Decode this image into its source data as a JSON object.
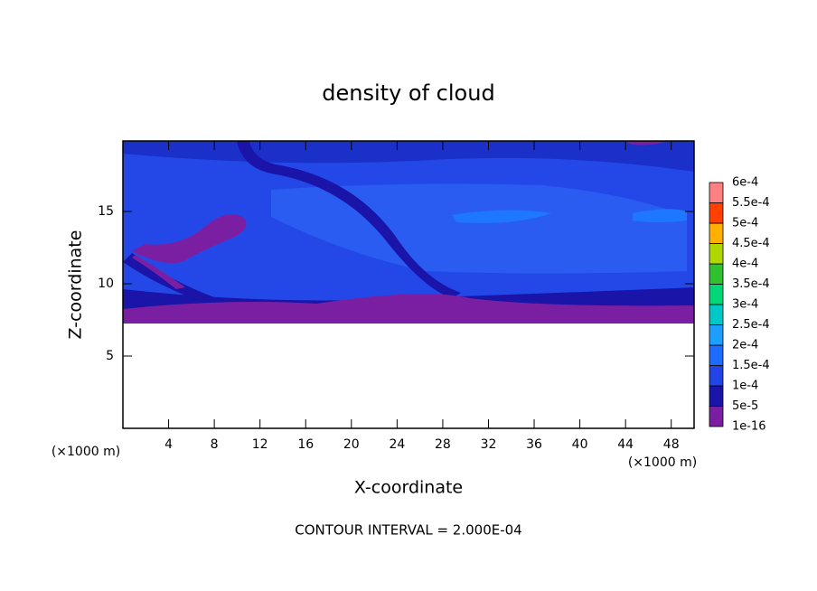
{
  "chart_data": {
    "type": "contour",
    "title": "density of cloud",
    "x_label": "X-coordinate",
    "y_label": "Z-coordinate",
    "x_unit": "(×1000 m)",
    "y_unit": "(×1000 m)",
    "annotation": "CONTOUR INTERVAL = 2.000E-04",
    "xlim": [
      0,
      50
    ],
    "ylim": [
      0,
      20
    ],
    "xticks": [
      4,
      8,
      12,
      16,
      20,
      24,
      28,
      32,
      36,
      40,
      44,
      48
    ],
    "yticks": [
      5,
      10,
      15
    ],
    "colorbar": {
      "levels": [
        {
          "value": 1e-16,
          "label": "1e-16"
        },
        {
          "value": 5e-05,
          "label": "5e-5"
        },
        {
          "value": 0.0001,
          "label": "1e-4"
        },
        {
          "value": 0.00015,
          "label": "1.5e-4"
        },
        {
          "value": 0.0002,
          "label": "2e-4"
        },
        {
          "value": 0.00025,
          "label": "2.5e-4"
        },
        {
          "value": 0.0003,
          "label": "3e-4"
        },
        {
          "value": 0.00035,
          "label": "3.5e-4"
        },
        {
          "value": 0.0004,
          "label": "4e-4"
        },
        {
          "value": 0.00045,
          "label": "4.5e-4"
        },
        {
          "value": 0.0005,
          "label": "5e-4"
        },
        {
          "value": 0.00055,
          "label": "5.5e-4"
        },
        {
          "value": 0.0006,
          "label": "6e-4"
        }
      ],
      "colors": [
        "#7b1fa2",
        "#1a14a8",
        "#2244e6",
        "#1e6cff",
        "#1e9eff",
        "#00c8c8",
        "#00d878",
        "#30c030",
        "#b0d800",
        "#ffb000",
        "#ff4000",
        "#ff8080"
      ]
    }
  }
}
